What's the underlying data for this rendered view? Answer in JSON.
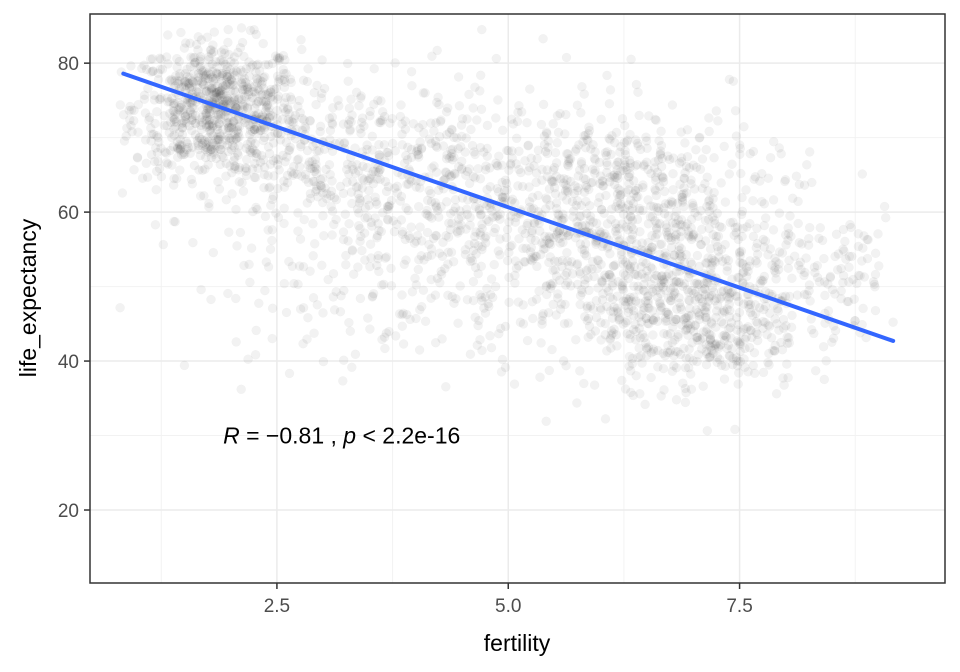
{
  "chart_data": {
    "type": "scatter",
    "title": "",
    "xlabel": "fertility",
    "ylabel": "life_expectancy",
    "xlim": [
      0.48,
      9.72
    ],
    "ylim": [
      10.2,
      86.6
    ],
    "x_ticks": [
      2.5,
      5.0,
      7.5
    ],
    "x_tick_labels": [
      "2.5",
      "5.0",
      "7.5"
    ],
    "y_ticks": [
      20,
      40,
      60,
      80
    ],
    "y_tick_labels": [
      "20",
      "40",
      "60",
      "80"
    ],
    "grid": true,
    "legend": "none",
    "point_color": "#000000",
    "point_alpha": 0.05,
    "regression": {
      "color": "#3366FF",
      "x": [
        0.84,
        9.16
      ],
      "y": [
        78.6,
        42.7
      ]
    },
    "annotation": {
      "x": 3.2,
      "y": 30,
      "R_symbol": "R",
      "eq": " = ",
      "minus": "−",
      "r_value": "0.81",
      "sep": " , ",
      "p_symbol": "p",
      "p_text": " < 2.2e-16"
    },
    "clusters": [
      {
        "x": 1.85,
        "y": 74.0,
        "sx": 0.45,
        "sy": 4.5,
        "n": 750
      },
      {
        "x": 3.2,
        "y": 66.0,
        "sx": 0.9,
        "sy": 6.0,
        "n": 450
      },
      {
        "x": 4.6,
        "y": 60.0,
        "sx": 0.9,
        "sy": 8.0,
        "n": 380
      },
      {
        "x": 6.2,
        "y": 56.0,
        "sx": 0.75,
        "sy": 8.0,
        "n": 650
      },
      {
        "x": 7.1,
        "y": 46.0,
        "sx": 0.55,
        "sy": 5.0,
        "n": 450
      },
      {
        "x": 6.7,
        "y": 64.0,
        "sx": 0.9,
        "sy": 5.0,
        "n": 200
      },
      {
        "x": 8.4,
        "y": 52.0,
        "sx": 0.5,
        "sy": 4.5,
        "n": 120
      },
      {
        "x": 3.6,
        "y": 48.0,
        "sx": 1.0,
        "sy": 5.0,
        "n": 100
      }
    ]
  }
}
